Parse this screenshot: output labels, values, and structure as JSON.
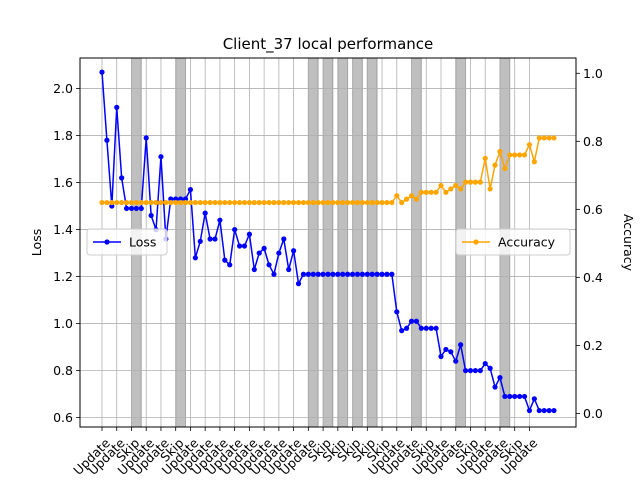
{
  "chart_data": {
    "type": "line",
    "title": "Client_37 local performance",
    "ylabel_left": "Loss",
    "ylabel_right": "Accuracy",
    "ylim_left": [
      0.56,
      2.13
    ],
    "ylim_right": [
      -0.04,
      1.045
    ],
    "yticks_left": [
      "0.6",
      "0.8",
      "1.0",
      "1.2",
      "1.4",
      "1.6",
      "1.8",
      "2.0"
    ],
    "yticks_right": [
      "0.0",
      "0.2",
      "0.4",
      "0.6",
      "0.8",
      "1.0"
    ],
    "grid": true,
    "x_ticks": [
      {
        "idx": 0,
        "label": "Update"
      },
      {
        "idx": 3,
        "label": "Update"
      },
      {
        "idx": 6,
        "label": "Skip"
      },
      {
        "idx": 9,
        "label": "Update"
      },
      {
        "idx": 12,
        "label": "Update"
      },
      {
        "idx": 15,
        "label": "Skip"
      },
      {
        "idx": 18,
        "label": "Update"
      },
      {
        "idx": 21,
        "label": "Update"
      },
      {
        "idx": 24,
        "label": "Update"
      },
      {
        "idx": 27,
        "label": "Update"
      },
      {
        "idx": 30,
        "label": "Update"
      },
      {
        "idx": 33,
        "label": "Update"
      },
      {
        "idx": 36,
        "label": "Update"
      },
      {
        "idx": 39,
        "label": "Update"
      },
      {
        "idx": 42,
        "label": "Update"
      },
      {
        "idx": 45,
        "label": "Skip"
      },
      {
        "idx": 48,
        "label": "Skip"
      },
      {
        "idx": 51,
        "label": "Skip"
      },
      {
        "idx": 54,
        "label": "Skip"
      },
      {
        "idx": 57,
        "label": "Skip"
      },
      {
        "idx": 60,
        "label": "Update"
      },
      {
        "idx": 63,
        "label": "Update"
      },
      {
        "idx": 66,
        "label": "Skip"
      },
      {
        "idx": 69,
        "label": "Update"
      },
      {
        "idx": 72,
        "label": "Update"
      },
      {
        "idx": 75,
        "label": "Skip"
      },
      {
        "idx": 78,
        "label": "Update"
      },
      {
        "idx": 81,
        "label": "Update"
      },
      {
        "idx": 84,
        "label": "Skip"
      },
      {
        "idx": 87,
        "label": "Update"
      }
    ],
    "skip_spans": [
      [
        6,
        8
      ],
      [
        15,
        17
      ],
      [
        42,
        44
      ],
      [
        45,
        47
      ],
      [
        48,
        50
      ],
      [
        51,
        53
      ],
      [
        54,
        56
      ],
      [
        63,
        65
      ],
      [
        72,
        74
      ],
      [
        81,
        83
      ]
    ],
    "series": [
      {
        "name": "Loss",
        "axis": "left",
        "color": "#0000ff",
        "legend_position": "center-left",
        "values": [
          2.07,
          1.78,
          1.5,
          1.92,
          1.62,
          1.49,
          1.49,
          1.49,
          1.49,
          1.79,
          1.46,
          1.4,
          1.71,
          1.36,
          1.53,
          1.53,
          1.53,
          1.53,
          1.57,
          1.28,
          1.35,
          1.47,
          1.36,
          1.36,
          1.44,
          1.27,
          1.25,
          1.4,
          1.33,
          1.33,
          1.38,
          1.23,
          1.3,
          1.32,
          1.25,
          1.21,
          1.3,
          1.36,
          1.23,
          1.31,
          1.17,
          1.21,
          1.21,
          1.21,
          1.21,
          1.21,
          1.21,
          1.21,
          1.21,
          1.21,
          1.21,
          1.21,
          1.21,
          1.21,
          1.21,
          1.21,
          1.21,
          1.21,
          1.21,
          1.21,
          1.05,
          0.97,
          0.98,
          1.01,
          1.01,
          0.98,
          0.98,
          0.98,
          0.98,
          0.86,
          0.89,
          0.88,
          0.84,
          0.91,
          0.8,
          0.8,
          0.8,
          0.8,
          0.83,
          0.81,
          0.73,
          0.77,
          0.69,
          0.69,
          0.69,
          0.69,
          0.69,
          0.63,
          0.68,
          0.63,
          0.63,
          0.63,
          0.63
        ]
      },
      {
        "name": "Accuracy",
        "axis": "right",
        "color": "#ffa500",
        "legend_position": "center-right",
        "values": [
          0.62,
          0.62,
          0.62,
          0.62,
          0.62,
          0.62,
          0.62,
          0.62,
          0.62,
          0.62,
          0.62,
          0.62,
          0.62,
          0.62,
          0.62,
          0.62,
          0.62,
          0.62,
          0.62,
          0.62,
          0.62,
          0.62,
          0.62,
          0.62,
          0.62,
          0.62,
          0.62,
          0.62,
          0.62,
          0.62,
          0.62,
          0.62,
          0.62,
          0.62,
          0.62,
          0.62,
          0.62,
          0.62,
          0.62,
          0.62,
          0.62,
          0.62,
          0.62,
          0.62,
          0.62,
          0.62,
          0.62,
          0.62,
          0.62,
          0.62,
          0.62,
          0.62,
          0.62,
          0.62,
          0.62,
          0.62,
          0.62,
          0.62,
          0.62,
          0.62,
          0.64,
          0.62,
          0.63,
          0.64,
          0.63,
          0.65,
          0.65,
          0.65,
          0.65,
          0.67,
          0.65,
          0.66,
          0.67,
          0.66,
          0.68,
          0.68,
          0.68,
          0.68,
          0.75,
          0.66,
          0.73,
          0.77,
          0.72,
          0.76,
          0.76,
          0.76,
          0.76,
          0.79,
          0.74,
          0.81,
          0.81,
          0.81,
          0.81
        ]
      }
    ]
  }
}
